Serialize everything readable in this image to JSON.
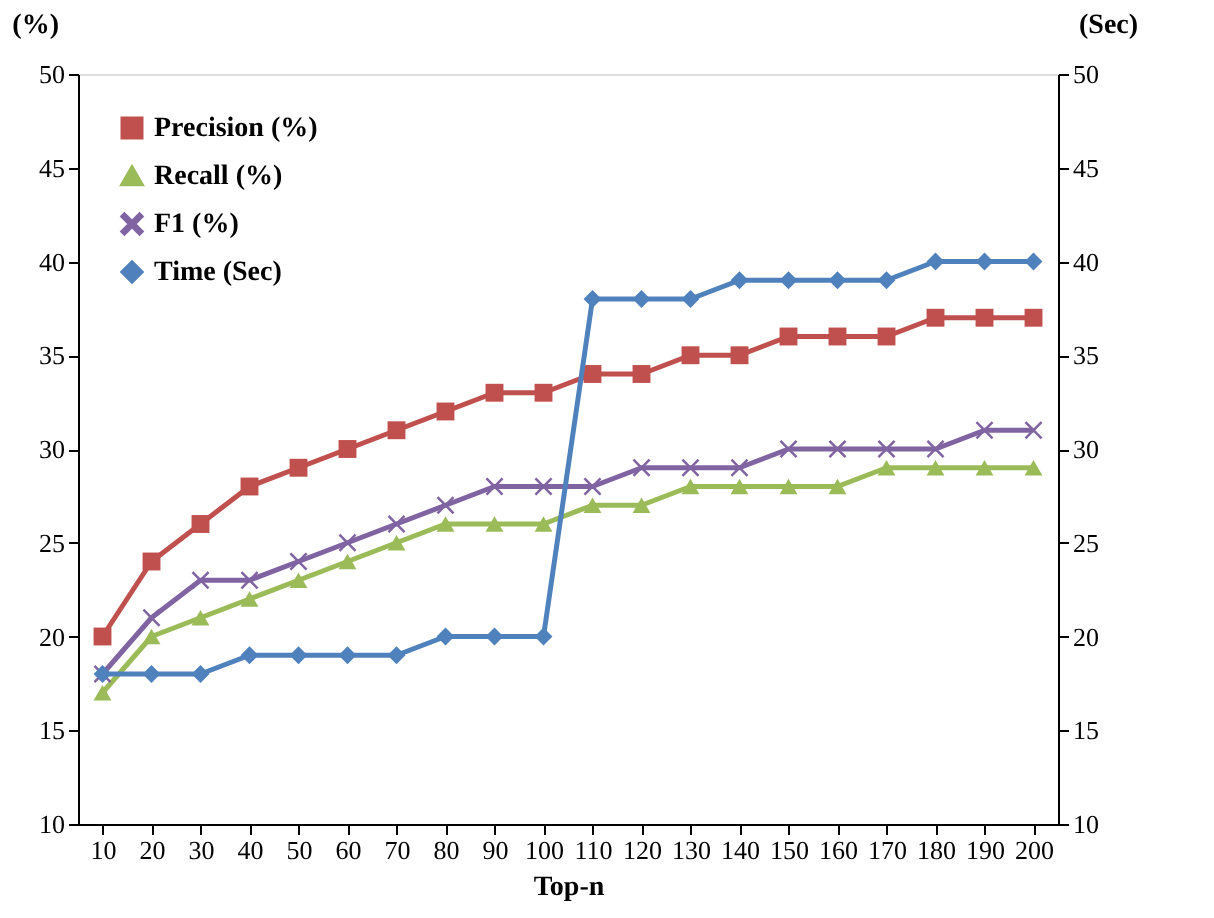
{
  "chart_data": {
    "type": "line",
    "xlabel": "Top-n",
    "ylabel": "(%)",
    "y2label": "(Sec)",
    "categories": [
      "10",
      "20",
      "30",
      "40",
      "50",
      "60",
      "70",
      "80",
      "90",
      "100",
      "110",
      "120",
      "130",
      "140",
      "150",
      "160",
      "170",
      "180",
      "190",
      "200"
    ],
    "ylim": [
      10,
      50
    ],
    "yticks": [
      10,
      15,
      20,
      25,
      30,
      35,
      40,
      45,
      50
    ],
    "y2lim": [
      10,
      50
    ],
    "y2ticks": [
      10,
      15,
      20,
      25,
      30,
      35,
      40,
      45,
      50
    ],
    "legend": "top left",
    "grid": false,
    "series": [
      {
        "name": "Precision (%)",
        "color": "#c0504d",
        "marker": "square",
        "values": [
          20,
          24,
          26,
          28,
          29,
          30,
          31,
          32,
          33,
          33,
          34,
          34,
          35,
          35,
          36,
          36,
          36,
          37,
          37,
          37
        ]
      },
      {
        "name": "Recall (%)",
        "color": "#9bbb59",
        "marker": "triangle",
        "values": [
          17,
          20,
          21,
          22,
          23,
          24,
          25,
          26,
          26,
          26,
          27,
          27,
          28,
          28,
          28,
          28,
          29,
          29,
          29,
          29
        ]
      },
      {
        "name": "F1 (%)",
        "color": "#8064a2",
        "marker": "cross",
        "values": [
          18,
          21,
          23,
          23,
          24,
          25,
          26,
          27,
          28,
          28,
          28,
          29,
          29,
          29,
          30,
          30,
          30,
          30,
          31,
          31
        ]
      },
      {
        "name": "Time (Sec)",
        "color": "#4f81bd",
        "marker": "diamond",
        "axis": "y2",
        "values": [
          18,
          18,
          18,
          19,
          19,
          19,
          19,
          20,
          20,
          20,
          38,
          38,
          38,
          39,
          39,
          39,
          39,
          40,
          40,
          40
        ]
      }
    ]
  }
}
